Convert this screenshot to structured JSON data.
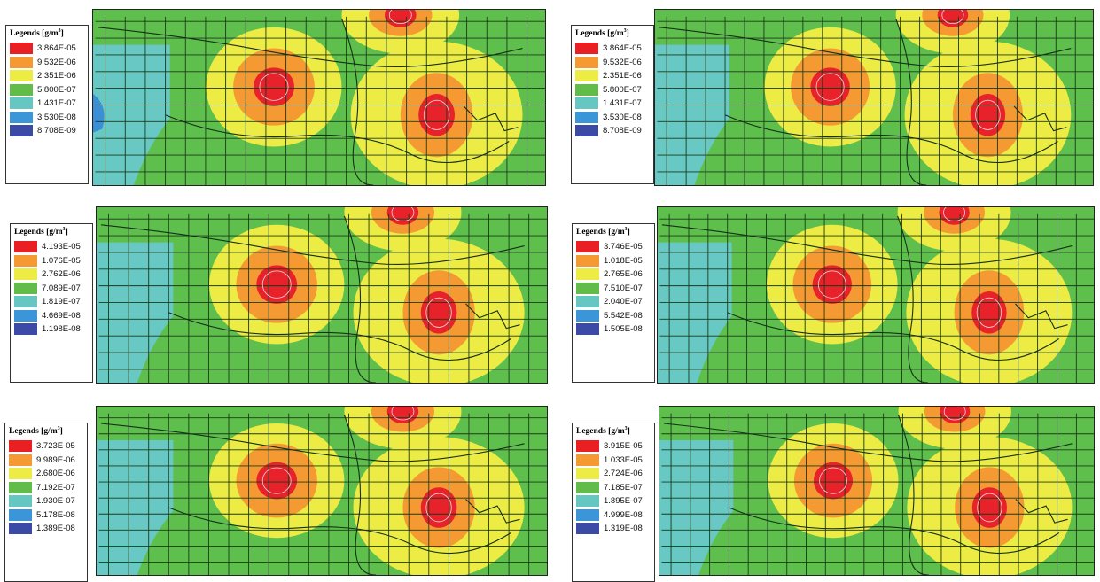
{
  "legend": {
    "title": "Legends [g/m",
    "title_sup": "3",
    "title_close": "]",
    "colors": [
      "#ea1f24",
      "#f59a32",
      "#ecec45",
      "#62bc4a",
      "#66c6c2",
      "#3a96d8",
      "#3b4aa4"
    ]
  },
  "map_colors": {
    "background_zone": "#5fbf4c",
    "water_zone": "#67c8c4",
    "deep_water": "#3a8fd6",
    "yellow_zone": "#ecec45",
    "orange_zone": "#f59a32",
    "red_zone": "#e8222a",
    "grid_line": "#1b3a1b"
  },
  "panels": [
    {
      "values": [
        "3.864E-05",
        "9.532E-06",
        "2.351E-06",
        "5.800E-07",
        "1.431E-07",
        "3.530E-08",
        "8.708E-09"
      ]
    },
    {
      "values": [
        "3.864E-05",
        "9.532E-06",
        "2.351E-06",
        "5.800E-07",
        "1.431E-07",
        "3.530E-08",
        "8.708E-09"
      ]
    },
    {
      "values": [
        "4.193E-05",
        "1.076E-05",
        "2.762E-06",
        "7.089E-07",
        "1.819E-07",
        "4.669E-08",
        "1.198E-08"
      ]
    },
    {
      "values": [
        "3.746E-05",
        "1.018E-05",
        "2.765E-06",
        "7.510E-07",
        "2.040E-07",
        "5.542E-08",
        "1.505E-08"
      ]
    },
    {
      "values": [
        "3.723E-05",
        "9.989E-06",
        "2.680E-06",
        "7.192E-07",
        "1.930E-07",
        "5.178E-08",
        "1.389E-08"
      ]
    },
    {
      "values": [
        "3.915E-05",
        "1.033E-05",
        "2.724E-06",
        "7.185E-07",
        "1.895E-07",
        "4.999E-08",
        "1.319E-08"
      ]
    }
  ]
}
